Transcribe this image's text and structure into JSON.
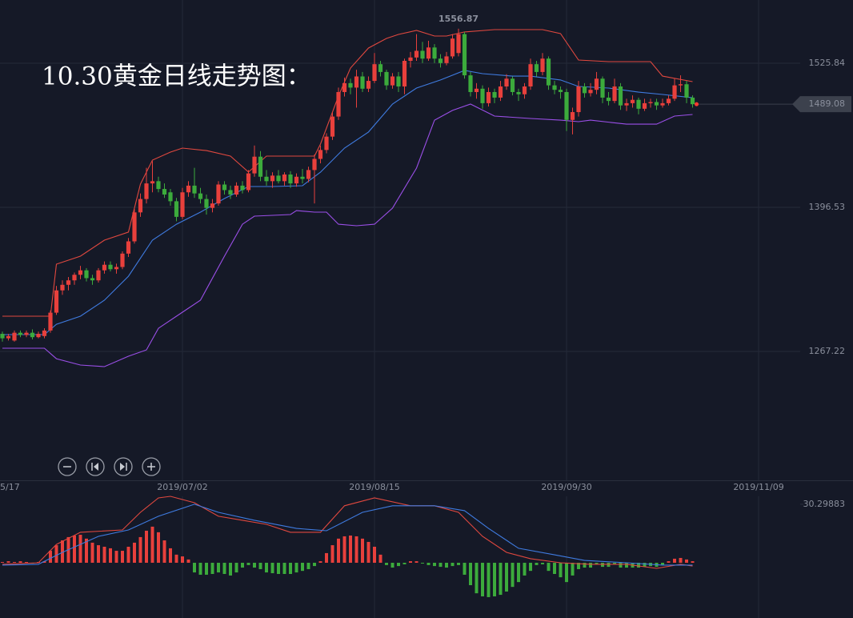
{
  "chart_data": [
    {
      "type": "candlestick",
      "title": "10.30黄金日线走势图：",
      "up_color": "#e8403c",
      "down_color": "#3cab3c",
      "xlim": [
        -0.4,
        141.73
      ],
      "ylim": [
        1151.55,
        1582.6
      ],
      "yticks": [
        1267.22,
        1396.53,
        1525.84
      ],
      "xticks": [
        {
          "value": -2,
          "label": "5/17"
        },
        {
          "value": 30,
          "label": "2019/07/02"
        },
        {
          "value": 62,
          "label": "2019/08/15"
        },
        {
          "value": 94,
          "label": "2019/09/30"
        },
        {
          "value": 126,
          "label": "2019/11/09"
        }
      ],
      "grid": true,
      "candles": [
        [
          1283,
          1285,
          1276,
          1279
        ],
        [
          1279,
          1283,
          1277,
          1281
        ],
        [
          1277,
          1286,
          1276,
          1284
        ],
        [
          1284,
          1286,
          1280,
          1282
        ],
        [
          1282,
          1286,
          1280,
          1284
        ],
        [
          1284,
          1287,
          1278,
          1280
        ],
        [
          1280,
          1285,
          1279,
          1283
        ],
        [
          1281,
          1288,
          1279,
          1286
        ],
        [
          1286,
          1304,
          1284,
          1302
        ],
        [
          1302,
          1326,
          1300,
          1322
        ],
        [
          1322,
          1331,
          1318,
          1327
        ],
        [
          1327,
          1334,
          1322,
          1331
        ],
        [
          1331,
          1338,
          1327,
          1336
        ],
        [
          1336,
          1344,
          1332,
          1340
        ],
        [
          1340,
          1342,
          1330,
          1333
        ],
        [
          1333,
          1336,
          1327,
          1331
        ],
        [
          1331,
          1342,
          1329,
          1340
        ],
        [
          1340,
          1348,
          1337,
          1345
        ],
        [
          1345,
          1348,
          1339,
          1341
        ],
        [
          1341,
          1346,
          1337,
          1343
        ],
        [
          1343,
          1357,
          1341,
          1355
        ],
        [
          1355,
          1369,
          1352,
          1366
        ],
        [
          1366,
          1395,
          1364,
          1392
        ],
        [
          1392,
          1409,
          1388,
          1404
        ],
        [
          1404,
          1432,
          1400,
          1418
        ],
        [
          1418,
          1438,
          1410,
          1420
        ],
        [
          1420,
          1424,
          1410,
          1413
        ],
        [
          1413,
          1418,
          1405,
          1408
        ],
        [
          1410,
          1413,
          1398,
          1402
        ],
        [
          1402,
          1405,
          1384,
          1388
        ],
        [
          1388,
          1414,
          1386,
          1410
        ],
        [
          1410,
          1420,
          1406,
          1416
        ],
        [
          1416,
          1432,
          1405,
          1409
        ],
        [
          1409,
          1414,
          1400,
          1404
        ],
        [
          1404,
          1408,
          1390,
          1396
        ],
        [
          1396,
          1404,
          1392,
          1400
        ],
        [
          1400,
          1420,
          1398,
          1417
        ],
        [
          1417,
          1420,
          1408,
          1412
        ],
        [
          1412,
          1416,
          1404,
          1408
        ],
        [
          1408,
          1419,
          1406,
          1416
        ],
        [
          1416,
          1420,
          1409,
          1412
        ],
        [
          1412,
          1430,
          1410,
          1427
        ],
        [
          1427,
          1452,
          1424,
          1442
        ],
        [
          1442,
          1447,
          1420,
          1424
        ],
        [
          1424,
          1430,
          1416,
          1420
        ],
        [
          1420,
          1428,
          1414,
          1425
        ],
        [
          1425,
          1430,
          1418,
          1420
        ],
        [
          1420,
          1428,
          1416,
          1426
        ],
        [
          1426,
          1429,
          1414,
          1418
        ],
        [
          1418,
          1427,
          1415,
          1424
        ],
        [
          1424,
          1431,
          1418,
          1422
        ],
        [
          1422,
          1433,
          1419,
          1430
        ],
        [
          1430,
          1444,
          1400,
          1440
        ],
        [
          1440,
          1452,
          1436,
          1448
        ],
        [
          1448,
          1463,
          1445,
          1460
        ],
        [
          1460,
          1482,
          1457,
          1478
        ],
        [
          1478,
          1504,
          1475,
          1500
        ],
        [
          1500,
          1513,
          1496,
          1508
        ],
        [
          1508,
          1512,
          1498,
          1504
        ],
        [
          1504,
          1520,
          1486,
          1514
        ],
        [
          1514,
          1518,
          1500,
          1503
        ],
        [
          1503,
          1514,
          1500,
          1510
        ],
        [
          1510,
          1535,
          1508,
          1525
        ],
        [
          1525,
          1528,
          1514,
          1518
        ],
        [
          1518,
          1520,
          1502,
          1506
        ],
        [
          1506,
          1517,
          1503,
          1514
        ],
        [
          1514,
          1518,
          1500,
          1505
        ],
        [
          1505,
          1530,
          1498,
          1528
        ],
        [
          1528,
          1536,
          1522,
          1531
        ],
        [
          1531,
          1552,
          1528,
          1537
        ],
        [
          1537,
          1545,
          1526,
          1530
        ],
        [
          1530,
          1546,
          1528,
          1540
        ],
        [
          1540,
          1543,
          1526,
          1530
        ],
        [
          1530,
          1534,
          1522,
          1526
        ],
        [
          1526,
          1536,
          1524,
          1532
        ],
        [
          1532,
          1552,
          1530,
          1548
        ],
        [
          1535,
          1556.87,
          1532,
          1552
        ],
        [
          1552,
          1554,
          1512,
          1515
        ],
        [
          1515,
          1518,
          1496,
          1500
        ],
        [
          1500,
          1508,
          1494,
          1503
        ],
        [
          1503,
          1506,
          1485,
          1490
        ],
        [
          1490,
          1504,
          1487,
          1500
        ],
        [
          1500,
          1503,
          1490,
          1495
        ],
        [
          1495,
          1510,
          1492,
          1505
        ],
        [
          1505,
          1516,
          1502,
          1512
        ],
        [
          1512,
          1514,
          1497,
          1500
        ],
        [
          1500,
          1503,
          1492,
          1498
        ],
        [
          1498,
          1508,
          1494,
          1505
        ],
        [
          1505,
          1530,
          1502,
          1525
        ],
        [
          1525,
          1528,
          1514,
          1518
        ],
        [
          1518,
          1535,
          1515,
          1530
        ],
        [
          1530,
          1532,
          1502,
          1506
        ],
        [
          1506,
          1510,
          1498,
          1502
        ],
        [
          1502,
          1505,
          1494,
          1500
        ],
        [
          1500,
          1503,
          1465,
          1475
        ],
        [
          1475,
          1486,
          1462,
          1482
        ],
        [
          1482,
          1510,
          1478,
          1505
        ],
        [
          1505,
          1508,
          1495,
          1499
        ],
        [
          1499,
          1508,
          1496,
          1502
        ],
        [
          1502,
          1518,
          1498,
          1512
        ],
        [
          1512,
          1514,
          1490,
          1495
        ],
        [
          1495,
          1500,
          1488,
          1492
        ],
        [
          1492,
          1512,
          1490,
          1505
        ],
        [
          1505,
          1508,
          1484,
          1488
        ],
        [
          1488,
          1494,
          1483,
          1490
        ],
        [
          1490,
          1497,
          1486,
          1493
        ],
        [
          1493,
          1495,
          1480,
          1485
        ],
        [
          1485,
          1494,
          1483,
          1490
        ],
        [
          1490,
          1494,
          1486,
          1491
        ],
        [
          1491,
          1494,
          1484,
          1488
        ],
        [
          1488,
          1494,
          1486,
          1490
        ],
        [
          1490,
          1497,
          1488,
          1494
        ],
        [
          1494,
          1512,
          1492,
          1506
        ],
        [
          1506,
          1515,
          1500,
          1507
        ],
        [
          1507,
          1510,
          1490,
          1495
        ],
        [
          1495,
          1497,
          1486,
          1489.08
        ]
      ],
      "lines": [
        {
          "color": "#e0483f",
          "x": [
            0,
            8,
            9,
            13,
            17,
            21,
            23,
            25,
            28,
            30,
            34,
            38,
            41,
            44,
            48,
            52,
            53,
            56,
            58,
            61,
            64,
            66,
            69,
            72,
            74,
            77,
            82,
            90,
            93,
            96,
            101,
            108,
            110,
            115
          ],
          "values": [
            1298.8,
            1298.8,
            1345.5,
            1352.7,
            1367.1,
            1374.3,
            1417.4,
            1438.9,
            1446.1,
            1449.7,
            1447.5,
            1442.5,
            1428.2,
            1442.5,
            1442.5,
            1442.5,
            1453.3,
            1496.4,
            1521.5,
            1539.5,
            1548.1,
            1551.7,
            1555.3,
            1550.3,
            1550.3,
            1553.9,
            1556,
            1556,
            1552.4,
            1528.7,
            1527.3,
            1527.3,
            1514.3,
            1509.3
          ]
        },
        {
          "color": "#3f7be0",
          "x": [
            0,
            7,
            9,
            13,
            17,
            21,
            25,
            29,
            33,
            37,
            41,
            45,
            50,
            53,
            57,
            61,
            65,
            69,
            73,
            77,
            80,
            85,
            88,
            93,
            96,
            101,
            106,
            110,
            115
          ],
          "values": [
            1282.3,
            1282.3,
            1291.6,
            1298.8,
            1313.2,
            1334.7,
            1367.1,
            1381.4,
            1392.2,
            1404.4,
            1415.2,
            1415.2,
            1415.9,
            1428.1,
            1449.7,
            1464.1,
            1489.2,
            1503.6,
            1510.8,
            1519.4,
            1516.5,
            1514.3,
            1514.3,
            1510.8,
            1505,
            1503.6,
            1499.9,
            1497.8,
            1494.9
          ]
        },
        {
          "color": "#9b4fe8",
          "x": [
            0,
            7,
            9,
            13,
            17,
            21,
            24,
            26,
            30,
            33,
            37,
            40,
            42,
            48,
            49,
            52,
            54,
            56,
            59,
            62,
            65,
            69,
            72,
            75,
            78,
            82,
            88,
            93,
            96,
            98,
            104,
            109,
            112,
            115
          ],
          "values": [
            1270.1,
            1270.1,
            1260.7,
            1255,
            1253.6,
            1262.9,
            1268.6,
            1288,
            1302.4,
            1313.2,
            1352.7,
            1381.4,
            1388.6,
            1390.1,
            1393.6,
            1392.2,
            1392.2,
            1381.4,
            1380,
            1381.4,
            1395.8,
            1431.7,
            1474.8,
            1483.5,
            1489.2,
            1478.4,
            1476.3,
            1474.8,
            1473.4,
            1474.8,
            1471.2,
            1471.2,
            1478.4,
            1479.9
          ]
        }
      ]
    },
    {
      "type": "macd",
      "up_color": "#e8403c",
      "down_color": "#3cab3c",
      "xlim": [
        -0.4,
        141.73
      ],
      "ylim": [
        -28.6,
        42.7
      ],
      "yticks": [
        30.29883
      ],
      "histogram": [
        0.4,
        0.8,
        0.4,
        0.8,
        0.4,
        -0.4,
        0.4,
        0.8,
        6.2,
        9.1,
        11.6,
        13.3,
        14.1,
        14.5,
        12.5,
        10.4,
        9.1,
        8.3,
        7.5,
        6.2,
        6.2,
        8.3,
        10.4,
        13.3,
        16.6,
        18.7,
        15.8,
        11.6,
        7.5,
        4.2,
        3.3,
        1.7,
        -5,
        -6.2,
        -6.2,
        -5.8,
        -5,
        -5.8,
        -6.6,
        -5,
        -2.5,
        -1.2,
        -2.5,
        -3.3,
        -5,
        -5.4,
        -5.8,
        -5.8,
        -5.8,
        -5,
        -4.2,
        -3.3,
        -1.7,
        0.8,
        5,
        9.1,
        12.5,
        13.7,
        14.1,
        13.7,
        12.5,
        10.8,
        8.3,
        4.2,
        -1.2,
        -2.5,
        -1.7,
        -0.8,
        0.8,
        0.8,
        -0.4,
        -1.2,
        -1.7,
        -2.1,
        -2.5,
        -1.7,
        -1.2,
        -6.2,
        -11.6,
        -15.8,
        -17.4,
        -17.8,
        -17.4,
        -16.6,
        -14.9,
        -12.5,
        -10,
        -6.6,
        -4.2,
        -1.2,
        -0.8,
        -4.2,
        -5.8,
        -7.5,
        -10,
        -6.6,
        -3.3,
        -2.5,
        -2.5,
        -0.8,
        -2.1,
        -2.1,
        -0.8,
        -2.5,
        -2.5,
        -2.5,
        -2.5,
        -2.1,
        -1.7,
        -2.1,
        -1.2,
        0.8,
        2.1,
        2.5,
        1.7,
        0.8
      ],
      "lines": [
        {
          "color": "#e0483f",
          "x": [
            0,
            6,
            9,
            13,
            20,
            23,
            26,
            28,
            32,
            36,
            40,
            44,
            48,
            53,
            57,
            62,
            68,
            72,
            76,
            80,
            84,
            88,
            93,
            98,
            104,
            109,
            113,
            115
          ],
          "values": [
            -0.8,
            0,
            9.5,
            15.8,
            17,
            26.1,
            33.6,
            34.4,
            31.1,
            24.1,
            22,
            19.9,
            15.8,
            15.8,
            29.5,
            33.6,
            29.5,
            29.5,
            26.1,
            13.7,
            5.4,
            2.1,
            0,
            -0.8,
            -0.8,
            -2.9,
            -0.8,
            -1.7
          ]
        },
        {
          "color": "#3f7be0",
          "x": [
            0,
            6,
            10,
            16,
            21,
            26,
            32,
            36,
            42,
            49,
            54,
            60,
            65,
            72,
            77,
            81,
            86,
            92,
            97,
            104,
            110,
            115
          ],
          "values": [
            -1.2,
            -0.8,
            5.4,
            13.7,
            17,
            24.1,
            30.3,
            26.1,
            22,
            17.8,
            16.6,
            26.1,
            29.5,
            29.5,
            27,
            17.8,
            7.5,
            4.1,
            1.2,
            0,
            -1.2,
            -1.2
          ]
        }
      ]
    }
  ]
}
